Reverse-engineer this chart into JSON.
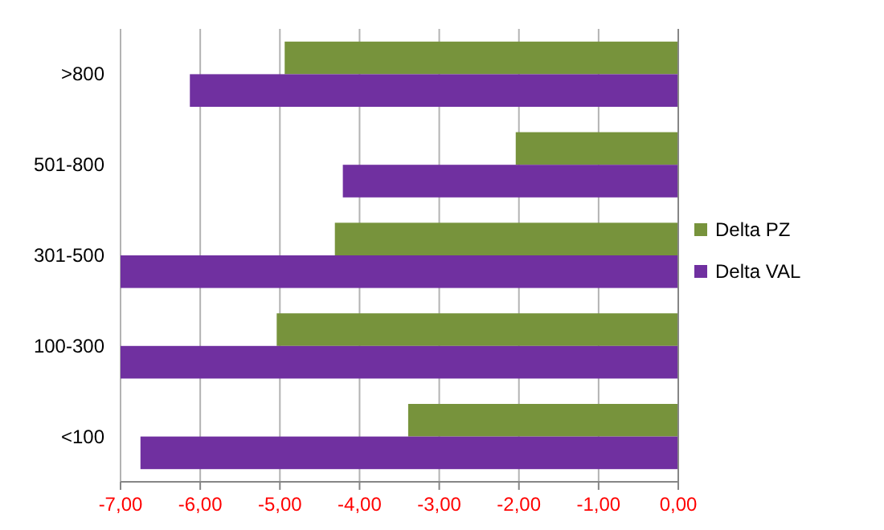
{
  "chart_data": {
    "type": "bar",
    "orientation": "horizontal",
    "categories": [
      ">800",
      "501-800",
      "301-500",
      "100-300",
      "<100"
    ],
    "series": [
      {
        "name": "Delta PZ",
        "color": "#77933c",
        "values": [
          -4.94,
          -2.04,
          -4.31,
          -5.04,
          -3.39
        ]
      },
      {
        "name": "Delta VAL",
        "color": "#7030a0",
        "values": [
          -6.13,
          -4.21,
          -7.0,
          -7.0,
          -6.75
        ]
      }
    ],
    "xlim": [
      -7,
      0
    ],
    "xticks": [
      {
        "value": -7,
        "label": "-7,00"
      },
      {
        "value": -6,
        "label": "-6,00"
      },
      {
        "value": -5,
        "label": "-5,00"
      },
      {
        "value": -4,
        "label": "-4,00"
      },
      {
        "value": -3,
        "label": "-3,00"
      },
      {
        "value": -2,
        "label": "-2,00"
      },
      {
        "value": -1,
        "label": "-1,00"
      },
      {
        "value": 0,
        "label": "0,00"
      }
    ],
    "grid": "x",
    "legend": "right"
  }
}
